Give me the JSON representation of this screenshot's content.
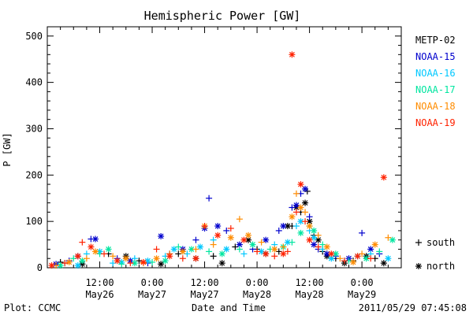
{
  "chart_data": {
    "type": "scatter",
    "title": "Hemispheric Power [GW]",
    "ylabel": "P [GW]",
    "xlabel": "Date and Time",
    "ylim": [
      0,
      520
    ],
    "xlim_hours": [
      0,
      81
    ],
    "yticks": [
      0,
      100,
      200,
      300,
      400,
      500
    ],
    "xticks": [
      {
        "t": 12,
        "time": "12:00",
        "date": "May26"
      },
      {
        "t": 24,
        "time": "0:00",
        "date": "May27"
      },
      {
        "t": 36,
        "time": "12:00",
        "date": "May27"
      },
      {
        "t": 48,
        "time": "0:00",
        "date": "May28"
      },
      {
        "t": 60,
        "time": "12:00",
        "date": "May28"
      },
      {
        "t": 72,
        "time": "0:00",
        "date": "May29"
      }
    ],
    "series": [
      {
        "name": "METP-02",
        "color": "#000000",
        "values": [
          [
            3,
            12
          ],
          [
            8,
            8
          ],
          [
            14,
            30
          ],
          [
            18,
            25
          ],
          [
            21,
            15
          ],
          [
            26,
            8
          ],
          [
            30,
            30
          ],
          [
            34,
            20
          ],
          [
            38,
            25
          ],
          [
            40,
            10
          ],
          [
            43,
            45
          ],
          [
            46,
            60
          ],
          [
            48,
            40
          ],
          [
            50,
            30
          ],
          [
            53,
            35
          ],
          [
            55,
            90
          ],
          [
            56,
            90
          ],
          [
            57,
            130
          ],
          [
            58,
            120
          ],
          [
            59,
            140
          ],
          [
            59.5,
            165
          ],
          [
            60,
            100
          ],
          [
            61,
            70
          ],
          [
            62,
            60
          ],
          [
            63,
            35
          ],
          [
            64,
            25
          ],
          [
            66,
            20
          ],
          [
            68,
            10
          ],
          [
            70,
            15
          ],
          [
            73,
            25
          ],
          [
            75,
            20
          ],
          [
            77,
            10
          ]
        ]
      },
      {
        "name": "NOAA-15",
        "color": "#0000cd",
        "values": [
          [
            2,
            8
          ],
          [
            5,
            15
          ],
          [
            7,
            25
          ],
          [
            10,
            62
          ],
          [
            11,
            62
          ],
          [
            16,
            20
          ],
          [
            19,
            15
          ],
          [
            23,
            10
          ],
          [
            26,
            68
          ],
          [
            28,
            30
          ],
          [
            31,
            40
          ],
          [
            34,
            60
          ],
          [
            36,
            85
          ],
          [
            37,
            150
          ],
          [
            39,
            90
          ],
          [
            41,
            80
          ],
          [
            44,
            50
          ],
          [
            47,
            40
          ],
          [
            50,
            60
          ],
          [
            53,
            80
          ],
          [
            54,
            90
          ],
          [
            56,
            130
          ],
          [
            57,
            135
          ],
          [
            58,
            160
          ],
          [
            59,
            170
          ],
          [
            60,
            110
          ],
          [
            61,
            50
          ],
          [
            62,
            40
          ],
          [
            64,
            30
          ],
          [
            66,
            25
          ],
          [
            69,
            20
          ],
          [
            72,
            75
          ],
          [
            74,
            40
          ],
          [
            76,
            30
          ]
        ]
      },
      {
        "name": "NOAA-16",
        "color": "#00c8ff",
        "values": [
          [
            4,
            10
          ],
          [
            7,
            5
          ],
          [
            9,
            30
          ],
          [
            12,
            35
          ],
          [
            15,
            10
          ],
          [
            17,
            12
          ],
          [
            20,
            20
          ],
          [
            23,
            15
          ],
          [
            27,
            25
          ],
          [
            29,
            40
          ],
          [
            32,
            30
          ],
          [
            35,
            45
          ],
          [
            38,
            60
          ],
          [
            41,
            40
          ],
          [
            45,
            30
          ],
          [
            49,
            35
          ],
          [
            52,
            50
          ],
          [
            55,
            55
          ],
          [
            57,
            90
          ],
          [
            58,
            100
          ],
          [
            60,
            80
          ],
          [
            61,
            65
          ],
          [
            63,
            40
          ],
          [
            65,
            20
          ],
          [
            68,
            15
          ],
          [
            71,
            25
          ],
          [
            74,
            30
          ],
          [
            78,
            20
          ]
        ]
      },
      {
        "name": "NOAA-17",
        "color": "#00e6a0",
        "values": [
          [
            3,
            5
          ],
          [
            6,
            20
          ],
          [
            8,
            15
          ],
          [
            12,
            30
          ],
          [
            14,
            40
          ],
          [
            17,
            8
          ],
          [
            20,
            10
          ],
          [
            24,
            12
          ],
          [
            27,
            15
          ],
          [
            30,
            45
          ],
          [
            33,
            40
          ],
          [
            37,
            35
          ],
          [
            40,
            30
          ],
          [
            44,
            40
          ],
          [
            47,
            50
          ],
          [
            51,
            40
          ],
          [
            54,
            45
          ],
          [
            56,
            55
          ],
          [
            58,
            75
          ],
          [
            60,
            90
          ],
          [
            61,
            80
          ],
          [
            63,
            50
          ],
          [
            66,
            30
          ],
          [
            69,
            15
          ],
          [
            73,
            20
          ],
          [
            76,
            35
          ],
          [
            79,
            60
          ]
        ]
      },
      {
        "name": "NOAA-18",
        "color": "#ff8c00",
        "values": [
          [
            2,
            5
          ],
          [
            5,
            12
          ],
          [
            9,
            20
          ],
          [
            11,
            35
          ],
          [
            15,
            25
          ],
          [
            18,
            20
          ],
          [
            22,
            10
          ],
          [
            25,
            20
          ],
          [
            28,
            30
          ],
          [
            31,
            35
          ],
          [
            34,
            40
          ],
          [
            36,
            90
          ],
          [
            38,
            50
          ],
          [
            42,
            65
          ],
          [
            44,
            105
          ],
          [
            46,
            70
          ],
          [
            49,
            55
          ],
          [
            52,
            40
          ],
          [
            54,
            45
          ],
          [
            56,
            110
          ],
          [
            57,
            160
          ],
          [
            58,
            130
          ],
          [
            59,
            120
          ],
          [
            60,
            90
          ],
          [
            62,
            70
          ],
          [
            64,
            45
          ],
          [
            67,
            20
          ],
          [
            70,
            12
          ],
          [
            72,
            30
          ],
          [
            75,
            50
          ],
          [
            78,
            65
          ]
        ]
      },
      {
        "name": "NOAA-19",
        "color": "#ff2200",
        "values": [
          [
            1,
            5
          ],
          [
            4,
            10
          ],
          [
            7,
            25
          ],
          [
            8,
            55
          ],
          [
            10,
            45
          ],
          [
            13,
            30
          ],
          [
            16,
            15
          ],
          [
            19,
            10
          ],
          [
            22,
            12
          ],
          [
            25,
            40
          ],
          [
            28,
            25
          ],
          [
            31,
            20
          ],
          [
            34,
            20
          ],
          [
            36,
            90
          ],
          [
            39,
            70
          ],
          [
            42,
            85
          ],
          [
            45,
            60
          ],
          [
            48,
            35
          ],
          [
            50,
            30
          ],
          [
            52,
            25
          ],
          [
            54,
            30
          ],
          [
            55,
            35
          ],
          [
            56,
            460
          ],
          [
            57,
            120
          ],
          [
            58,
            180
          ],
          [
            59,
            100
          ],
          [
            60,
            60
          ],
          [
            62,
            45
          ],
          [
            65,
            30
          ],
          [
            68,
            15
          ],
          [
            71,
            25
          ],
          [
            74,
            20
          ],
          [
            77,
            195
          ]
        ]
      }
    ],
    "legend": {
      "position": "right",
      "markers": [
        {
          "symbol": "+",
          "label": "south"
        },
        {
          "symbol": "*",
          "label": "north"
        }
      ]
    },
    "footer_left": "Plot: CCMC",
    "footer_right": "2011/05/29 07:45:08"
  }
}
